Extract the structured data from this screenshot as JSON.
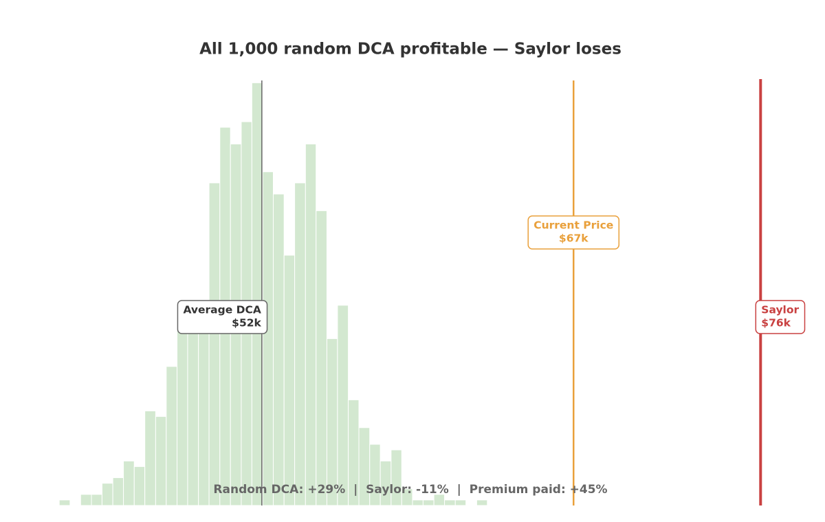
{
  "chart_data": {
    "type": "histogram",
    "title": "All 1,000 random DCA profitable — Saylor loses",
    "bins": [
      42.25,
      42.77,
      43.28,
      43.8,
      44.31,
      44.83,
      45.34,
      45.86,
      46.37,
      46.89,
      47.4,
      47.92,
      48.43,
      48.95,
      49.46,
      49.98,
      50.49,
      51.01,
      51.52,
      52.04,
      52.55,
      53.07,
      53.58,
      54.1,
      54.61,
      55.13,
      55.64,
      56.16,
      56.67,
      57.19,
      57.7,
      58.22,
      58.73,
      59.25,
      59.76,
      60.28,
      60.79,
      61.31,
      61.82,
      62.34,
      62.85
    ],
    "values": [
      1,
      0,
      2,
      2,
      4,
      5,
      8,
      7,
      17,
      16,
      25,
      32,
      35,
      35,
      58,
      68,
      65,
      69,
      76,
      60,
      56,
      45,
      58,
      65,
      53,
      30,
      36,
      19,
      14,
      11,
      8,
      10,
      3,
      1,
      1,
      2,
      1,
      1,
      0,
      1
    ],
    "color": "#d3e8d0",
    "xlim": [
      39.4,
      79.1
    ],
    "ylim": [
      0,
      80
    ],
    "reference_lines": {
      "names": [
        "Average DCA",
        "Current Price",
        "Saylor"
      ],
      "values": [
        52,
        67,
        76
      ],
      "value_labels": [
        "$52k",
        "$67k",
        "$76k"
      ],
      "colors": [
        "#666666",
        "#e9a03b",
        "#c94141"
      ]
    },
    "annotation": "Random DCA: +29%  |  Saylor: -11%  |  Premium paid: +45%"
  }
}
